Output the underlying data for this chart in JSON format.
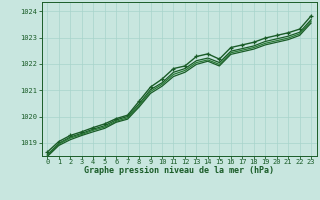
{
  "bg_color": "#c8e6df",
  "grid_color": "#a8d4cb",
  "line_color_dark": "#1a5c28",
  "line_color_mid": "#2a7a36",
  "xlabel": "Graphe pression niveau de la mer (hPa)",
  "xlabel_color": "#1a5c28",
  "tick_color": "#1a5c28",
  "spine_color": "#1a5c28",
  "xlim": [
    -0.5,
    23.5
  ],
  "ylim": [
    1018.5,
    1024.35
  ],
  "yticks": [
    1019,
    1020,
    1021,
    1022,
    1023,
    1024
  ],
  "xticks": [
    0,
    1,
    2,
    3,
    4,
    5,
    6,
    7,
    8,
    9,
    10,
    11,
    12,
    13,
    14,
    15,
    16,
    17,
    18,
    19,
    20,
    21,
    22,
    23
  ],
  "series": [
    {
      "x": [
        0,
        1,
        2,
        3,
        4,
        5,
        6,
        7,
        8,
        9,
        10,
        11,
        12,
        13,
        14,
        15,
        16,
        17,
        18,
        19,
        20,
        21,
        22,
        23
      ],
      "y": [
        1018.65,
        1019.05,
        1019.28,
        1019.42,
        1019.58,
        1019.72,
        1019.92,
        1020.05,
        1020.58,
        1021.12,
        1021.42,
        1021.82,
        1021.92,
        1022.28,
        1022.38,
        1022.18,
        1022.62,
        1022.72,
        1022.82,
        1022.98,
        1023.08,
        1023.18,
        1023.32,
        1023.82
      ],
      "marker": true,
      "lw": 1.0,
      "color": "#1a5c28"
    },
    {
      "x": [
        0,
        1,
        2,
        3,
        4,
        5,
        6,
        7,
        8,
        9,
        10,
        11,
        12,
        13,
        14,
        15,
        16,
        17,
        18,
        19,
        20,
        21,
        22,
        23
      ],
      "y": [
        1018.55,
        1018.98,
        1019.22,
        1019.36,
        1019.52,
        1019.65,
        1019.87,
        1020.0,
        1020.48,
        1021.02,
        1021.28,
        1021.68,
        1021.82,
        1022.12,
        1022.22,
        1022.05,
        1022.48,
        1022.58,
        1022.68,
        1022.85,
        1022.95,
        1023.05,
        1023.2,
        1023.68
      ],
      "marker": false,
      "lw": 0.9,
      "color": "#1a5c28"
    },
    {
      "x": [
        0,
        1,
        2,
        3,
        4,
        5,
        6,
        7,
        8,
        9,
        10,
        11,
        12,
        13,
        14,
        15,
        16,
        17,
        18,
        19,
        20,
        21,
        22,
        23
      ],
      "y": [
        1018.52,
        1018.95,
        1019.18,
        1019.32,
        1019.48,
        1019.6,
        1019.82,
        1019.95,
        1020.42,
        1020.95,
        1021.22,
        1021.6,
        1021.75,
        1022.05,
        1022.15,
        1021.98,
        1022.42,
        1022.52,
        1022.62,
        1022.78,
        1022.88,
        1022.98,
        1023.14,
        1023.62
      ],
      "marker": false,
      "lw": 0.9,
      "color": "#2a7a36"
    },
    {
      "x": [
        0,
        1,
        2,
        3,
        4,
        5,
        6,
        7,
        8,
        9,
        10,
        11,
        12,
        13,
        14,
        15,
        16,
        17,
        18,
        19,
        20,
        21,
        22,
        23
      ],
      "y": [
        1018.48,
        1018.9,
        1019.12,
        1019.28,
        1019.42,
        1019.55,
        1019.78,
        1019.9,
        1020.36,
        1020.88,
        1021.15,
        1021.52,
        1021.68,
        1021.98,
        1022.1,
        1021.92,
        1022.36,
        1022.46,
        1022.56,
        1022.72,
        1022.82,
        1022.92,
        1023.08,
        1023.55
      ],
      "marker": false,
      "lw": 0.9,
      "color": "#1a5c28"
    }
  ]
}
